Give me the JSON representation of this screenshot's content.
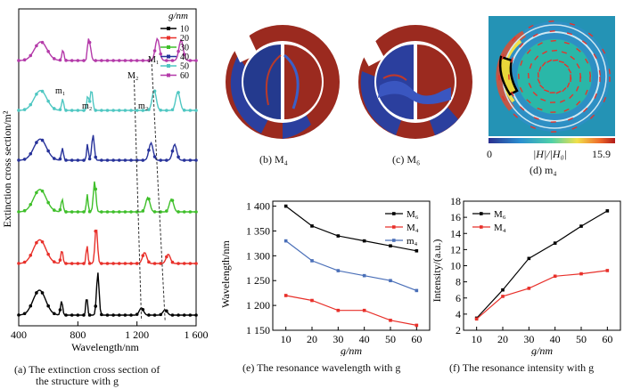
{
  "panel_a": {
    "ylabel": "Extinction cross section/m²",
    "xlabel": "Wavelength/nm",
    "x_ticks": [
      "400",
      "800",
      "1 200",
      "1 600"
    ],
    "legend_title": "g/nm",
    "annotations": [
      "M₁",
      "M₂",
      "m₁",
      "m₂",
      "m₂"
    ],
    "caption_line1": "(a) The extinction cross section of",
    "caption_line2": "the structure with g"
  },
  "panel_b": {
    "caption": "(b) M₄"
  },
  "panel_c": {
    "caption": "(c) M₆"
  },
  "panel_d": {
    "colorbar_min": "0",
    "colorbar_label": "|H|/|H₀|",
    "colorbar_max": "15.9",
    "caption": "(d) m₄"
  },
  "panel_e": {
    "caption": "(e) The resonance wavelength with g"
  },
  "panel_f": {
    "caption": "(f) The resonance intensity with g"
  },
  "chart_data": [
    {
      "type": "line",
      "panel": "a",
      "xlabel": "Wavelength/nm",
      "ylabel": "Extinction cross section/m²",
      "xlim": [
        400,
        1600
      ],
      "x_ticks": [
        400,
        800,
        1200,
        1600
      ],
      "legend_title": "g/nm",
      "series": [
        {
          "name": "10",
          "color": "#000000"
        },
        {
          "name": "20",
          "color": "#e8302a"
        },
        {
          "name": "30",
          "color": "#3fbf2a"
        },
        {
          "name": "40",
          "color": "#27329a"
        },
        {
          "name": "50",
          "color": "#4fc7c2"
        },
        {
          "name": "60",
          "color": "#b43aa9"
        }
      ]
    },
    {
      "type": "line",
      "panel": "e",
      "x": [
        10,
        20,
        30,
        40,
        50,
        60
      ],
      "xlabel": "g/nm",
      "ylabel": "Wavelength/nm",
      "xlim": [
        5,
        65
      ],
      "ylim": [
        1150,
        1410
      ],
      "y_ticks": [
        "1 150",
        "1 200",
        "1 250",
        "1 300",
        "1 350",
        "1 400"
      ],
      "x_ticks": [
        10,
        20,
        30,
        40,
        50,
        60
      ],
      "series": [
        {
          "name": "M₆",
          "color": "#000000",
          "values": [
            1400,
            1360,
            1340,
            1330,
            1320,
            1310
          ]
        },
        {
          "name": "M₄",
          "color": "#e8302a",
          "values": [
            1220,
            1210,
            1190,
            1190,
            1170,
            1160
          ]
        },
        {
          "name": "m₄",
          "color": "#4a6fb8",
          "values": [
            1330,
            1290,
            1270,
            1260,
            1250,
            1230
          ]
        }
      ]
    },
    {
      "type": "line",
      "panel": "f",
      "x": [
        10,
        20,
        30,
        40,
        50,
        60
      ],
      "xlabel": "g/nm",
      "ylabel": "Intensity/(a.u.)",
      "xlim": [
        5,
        65
      ],
      "ylim": [
        2,
        18
      ],
      "y_ticks": [
        2,
        4,
        6,
        8,
        10,
        12,
        14,
        16,
        18
      ],
      "x_ticks": [
        10,
        20,
        30,
        40,
        50,
        60
      ],
      "series": [
        {
          "name": "M₆",
          "color": "#000000",
          "values": [
            3.5,
            7.0,
            10.9,
            12.8,
            14.9,
            16.8
          ]
        },
        {
          "name": "M₄",
          "color": "#e8302a",
          "values": [
            3.4,
            6.2,
            7.2,
            8.7,
            9.0,
            9.4
          ]
        }
      ]
    }
  ]
}
